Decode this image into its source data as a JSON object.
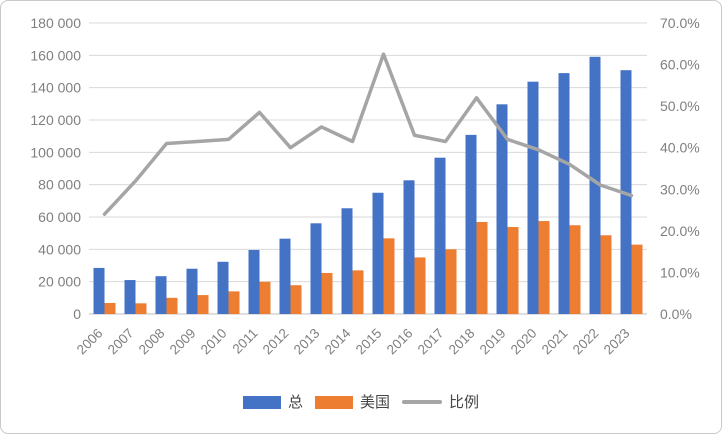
{
  "chart_data": {
    "type": "bar",
    "subtype": "combo-bar-line",
    "title": "",
    "xlabel": "",
    "ylabel": "",
    "grid": true,
    "legend_position": "bottom",
    "categories": [
      "2006",
      "2007",
      "2008",
      "2009",
      "2010",
      "2011",
      "2012",
      "2013",
      "2014",
      "2015",
      "2016",
      "2017",
      "2018",
      "2019",
      "2020",
      "2021",
      "2022",
      "2023"
    ],
    "series": [
      {
        "name": "总",
        "type": "bar",
        "axis": "left",
        "color": "#4472C4",
        "values": [
          28500,
          21000,
          23400,
          28000,
          32300,
          39600,
          46600,
          56100,
          65400,
          75000,
          82700,
          96700,
          110800,
          129700,
          143700,
          149000,
          159100,
          150800
        ]
      },
      {
        "name": "美国",
        "type": "bar",
        "axis": "left",
        "color": "#ED7D31",
        "values": [
          6800,
          6600,
          10000,
          11700,
          14000,
          19900,
          17800,
          25400,
          27000,
          46800,
          35000,
          40000,
          56900,
          53800,
          57500,
          54900,
          48700,
          42900
        ]
      },
      {
        "name": "比例",
        "type": "line",
        "axis": "right",
        "color": "#A5A5A5",
        "values": [
          24,
          32,
          41,
          41.5,
          42,
          48.5,
          40,
          45,
          41.5,
          62.5,
          43,
          41.5,
          52,
          42,
          39.5,
          36,
          31,
          28.5
        ]
      }
    ],
    "left_axis": {
      "min": 0,
      "max": 180000,
      "tick_step": 20000,
      "tick_labels": [
        "0",
        "20 000",
        "40 000",
        "60 000",
        "80 000",
        "100 000",
        "120 000",
        "140 000",
        "160 000",
        "180 000"
      ]
    },
    "right_axis": {
      "min": 0,
      "max": 70,
      "tick_step": 10,
      "tick_labels": [
        "0.0%",
        "10.0%",
        "20.0%",
        "30.0%",
        "40.0%",
        "50.0%",
        "60.0%",
        "70.0%"
      ]
    },
    "gridline_color": "#D9D9D9",
    "axis_line_color": "#BFBFBF"
  }
}
